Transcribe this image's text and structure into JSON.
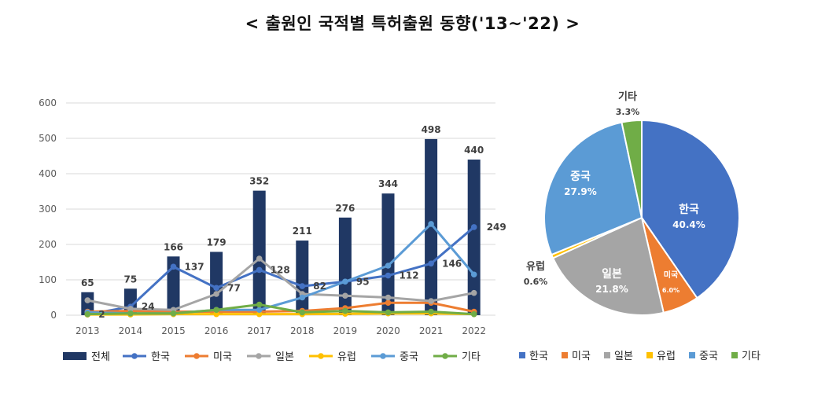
{
  "title": "< 출원인 국적별 특허출원 동향('13~'22) >",
  "colors": {
    "전체": "#203864",
    "한국": "#4472C4",
    "미국": "#ED7D31",
    "일본": "#A5A5A5",
    "유럽": "#FFC000",
    "중국": "#5B9BD5",
    "기타": "#70AD47",
    "grid": "#d9d9d9",
    "axis_text": "#595959",
    "label_text": "#404040"
  },
  "chart_data": [
    {
      "type": "bar+line",
      "title": "",
      "xlabel": "",
      "ylabel": "",
      "ylim": [
        0,
        600
      ],
      "yticks": [
        0,
        100,
        200,
        300,
        400,
        500,
        600
      ],
      "grid": true,
      "legend": "bottom",
      "categories": [
        "2013",
        "2014",
        "2015",
        "2016",
        "2017",
        "2018",
        "2019",
        "2020",
        "2021",
        "2022"
      ],
      "bar_series": {
        "name": "전체",
        "values": [
          65,
          75,
          166,
          179,
          352,
          211,
          276,
          344,
          498,
          440
        ]
      },
      "line_series": [
        {
          "name": "한국",
          "values": [
            2,
            24,
            137,
            77,
            128,
            82,
            95,
            112,
            146,
            249
          ]
        },
        {
          "name": "미국",
          "values": [
            10,
            12,
            10,
            10,
            10,
            12,
            20,
            35,
            35,
            10
          ]
        },
        {
          "name": "일본",
          "values": [
            42,
            18,
            15,
            60,
            160,
            60,
            55,
            50,
            40,
            63
          ]
        },
        {
          "name": "유럽",
          "values": [
            2,
            2,
            3,
            3,
            3,
            3,
            4,
            5,
            5,
            3
          ]
        },
        {
          "name": "중국",
          "values": [
            8,
            5,
            5,
            15,
            15,
            50,
            95,
            140,
            258,
            115
          ]
        },
        {
          "name": "기타",
          "values": [
            3,
            5,
            5,
            15,
            30,
            8,
            12,
            8,
            10,
            3
          ]
        }
      ],
      "line_labels": {
        "한국": [
          2,
          24,
          137,
          77,
          128,
          82,
          95,
          112,
          146,
          249
        ]
      }
    },
    {
      "type": "pie",
      "legend": "bottom",
      "slices": [
        {
          "name": "한국",
          "value": 40.4,
          "label": "40.4%"
        },
        {
          "name": "미국",
          "value": 6.0,
          "label": "6.0%"
        },
        {
          "name": "일본",
          "value": 21.8,
          "label": "21.8%"
        },
        {
          "name": "유럽",
          "value": 0.6,
          "label": "0.6%"
        },
        {
          "name": "중국",
          "value": 27.9,
          "label": "27.9%"
        },
        {
          "name": "기타",
          "value": 3.3,
          "label": "3.3%"
        }
      ]
    }
  ]
}
